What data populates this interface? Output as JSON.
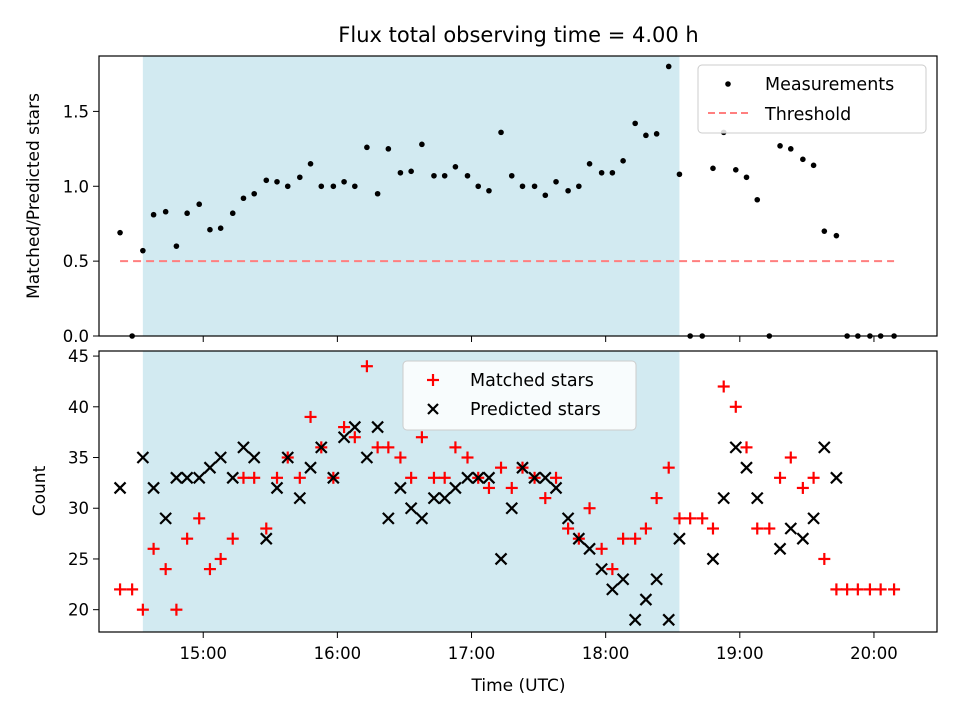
{
  "figure": {
    "title": "Flux total observing time = 4.00 h",
    "x_label": "Time (UTC)",
    "x_ticks": [
      "15:00",
      "16:00",
      "17:00",
      "18:00",
      "19:00",
      "20:00"
    ],
    "shaded_band_color": "#add8e6",
    "shaded_band": [
      14.55,
      18.55
    ]
  },
  "chart_data": [
    {
      "type": "scatter",
      "ylabel": "Matched/Predicted stars",
      "ylim": [
        0,
        1.87
      ],
      "yticks": [
        "0.0",
        "0.5",
        "1.0",
        "1.5"
      ],
      "legend": {
        "placement": "top-right",
        "entries": [
          "Measurements",
          "Threshold"
        ]
      },
      "series": [
        {
          "name": "Measurements",
          "marker": "dot",
          "color": "#000000",
          "x": [
            14.38,
            14.47,
            14.55,
            14.63,
            14.72,
            14.8,
            14.88,
            14.97,
            15.05,
            15.13,
            15.22,
            15.3,
            15.38,
            15.47,
            15.55,
            15.63,
            15.72,
            15.8,
            15.88,
            15.97,
            16.05,
            16.13,
            16.22,
            16.3,
            16.38,
            16.47,
            16.55,
            16.63,
            16.72,
            16.8,
            16.88,
            16.97,
            17.05,
            17.13,
            17.22,
            17.3,
            17.38,
            17.47,
            17.55,
            17.63,
            17.72,
            17.8,
            17.88,
            17.97,
            18.05,
            18.13,
            18.22,
            18.3,
            18.38,
            18.47,
            18.55,
            18.63,
            18.72,
            18.8,
            18.88,
            18.97,
            19.05,
            19.13,
            19.22,
            19.3,
            19.38,
            19.47,
            19.55,
            19.63,
            19.72,
            19.8,
            19.88,
            19.97,
            20.05,
            20.15
          ],
          "y": [
            0.69,
            0.0,
            0.57,
            0.81,
            0.83,
            0.6,
            0.82,
            0.88,
            0.71,
            0.72,
            0.82,
            0.92,
            0.95,
            1.04,
            1.03,
            1.0,
            1.06,
            1.15,
            1.0,
            1.0,
            1.03,
            1.0,
            1.26,
            0.95,
            1.25,
            1.09,
            1.1,
            1.28,
            1.07,
            1.07,
            1.13,
            1.07,
            1.0,
            0.97,
            1.36,
            1.07,
            1.0,
            1.0,
            0.94,
            1.03,
            0.97,
            1.0,
            1.15,
            1.09,
            1.09,
            1.17,
            1.42,
            1.34,
            1.35,
            1.8,
            1.08,
            0.0,
            0.0,
            1.12,
            1.36,
            1.11,
            1.06,
            0.91,
            0.0,
            1.27,
            1.25,
            1.18,
            1.14,
            0.7,
            0.67,
            0.0,
            0.0,
            0.0,
            0.0,
            0.0
          ]
        },
        {
          "name": "Threshold",
          "marker": "dashed-line",
          "color": "#ff7f7f",
          "x": [
            14.38,
            20.15
          ],
          "y": [
            0.5,
            0.5
          ]
        }
      ]
    },
    {
      "type": "scatter",
      "ylabel": "Count",
      "ylim": [
        17.8,
        45.5
      ],
      "yticks": [
        "20",
        "25",
        "30",
        "35",
        "40",
        "45"
      ],
      "legend": {
        "placement": "top-center",
        "entries": [
          "Matched stars",
          "Predicted stars"
        ]
      },
      "series": [
        {
          "name": "Matched stars",
          "marker": "plus",
          "color": "#ff0000",
          "x": [
            14.38,
            14.47,
            14.55,
            14.63,
            14.72,
            14.8,
            14.88,
            14.97,
            15.05,
            15.13,
            15.22,
            15.3,
            15.38,
            15.47,
            15.55,
            15.63,
            15.72,
            15.8,
            15.88,
            15.97,
            16.05,
            16.13,
            16.22,
            16.3,
            16.38,
            16.47,
            16.55,
            16.63,
            16.72,
            16.8,
            16.88,
            16.97,
            17.05,
            17.13,
            17.22,
            17.3,
            17.38,
            17.47,
            17.55,
            17.63,
            17.72,
            17.8,
            17.88,
            17.97,
            18.05,
            18.13,
            18.22,
            18.3,
            18.38,
            18.47,
            18.55,
            18.63,
            18.72,
            18.8,
            18.88,
            18.97,
            19.05,
            19.13,
            19.22,
            19.3,
            19.38,
            19.47,
            19.55,
            19.63,
            19.72,
            19.8,
            19.88,
            19.97,
            20.05,
            20.15
          ],
          "y": [
            22,
            22,
            20,
            26,
            24,
            20,
            27,
            29,
            24,
            25,
            27,
            33,
            33,
            28,
            33,
            35,
            33,
            39,
            36,
            33,
            38,
            37,
            44,
            36,
            36,
            35,
            33,
            37,
            33,
            33,
            36,
            35,
            33,
            32,
            34,
            32,
            34,
            33,
            31,
            33,
            28,
            27,
            30,
            26,
            24,
            27,
            27,
            28,
            31,
            34,
            29,
            29,
            29,
            28,
            42,
            40,
            36,
            28,
            28,
            33,
            35,
            32,
            33,
            25,
            22,
            22,
            22,
            22,
            22,
            22
          ]
        },
        {
          "name": "Predicted stars",
          "marker": "x",
          "color": "#000000",
          "x": [
            14.38,
            14.55,
            14.63,
            14.72,
            14.8,
            14.88,
            14.97,
            15.05,
            15.13,
            15.22,
            15.3,
            15.38,
            15.47,
            15.55,
            15.63,
            15.72,
            15.8,
            15.88,
            15.97,
            16.05,
            16.13,
            16.22,
            16.3,
            16.38,
            16.47,
            16.55,
            16.63,
            16.72,
            16.8,
            16.88,
            16.97,
            17.05,
            17.13,
            17.22,
            17.3,
            17.38,
            17.47,
            17.55,
            17.63,
            17.72,
            17.8,
            17.88,
            17.97,
            18.05,
            18.13,
            18.22,
            18.3,
            18.38,
            18.47,
            18.55,
            18.8,
            18.88,
            18.97,
            19.05,
            19.13,
            19.3,
            19.38,
            19.47,
            19.55,
            19.63,
            19.72
          ],
          "y": [
            32,
            35,
            32,
            29,
            33,
            33,
            33,
            34,
            35,
            33,
            36,
            35,
            27,
            32,
            35,
            31,
            34,
            36,
            33,
            37,
            38,
            35,
            38,
            29,
            32,
            30,
            29,
            31,
            31,
            32,
            33,
            33,
            33,
            25,
            30,
            34,
            33,
            33,
            32,
            29,
            27,
            26,
            24,
            22,
            23,
            19,
            21,
            23,
            19,
            27,
            25,
            31,
            36,
            34,
            31,
            26,
            28,
            27,
            29,
            36,
            33
          ]
        }
      ]
    }
  ]
}
